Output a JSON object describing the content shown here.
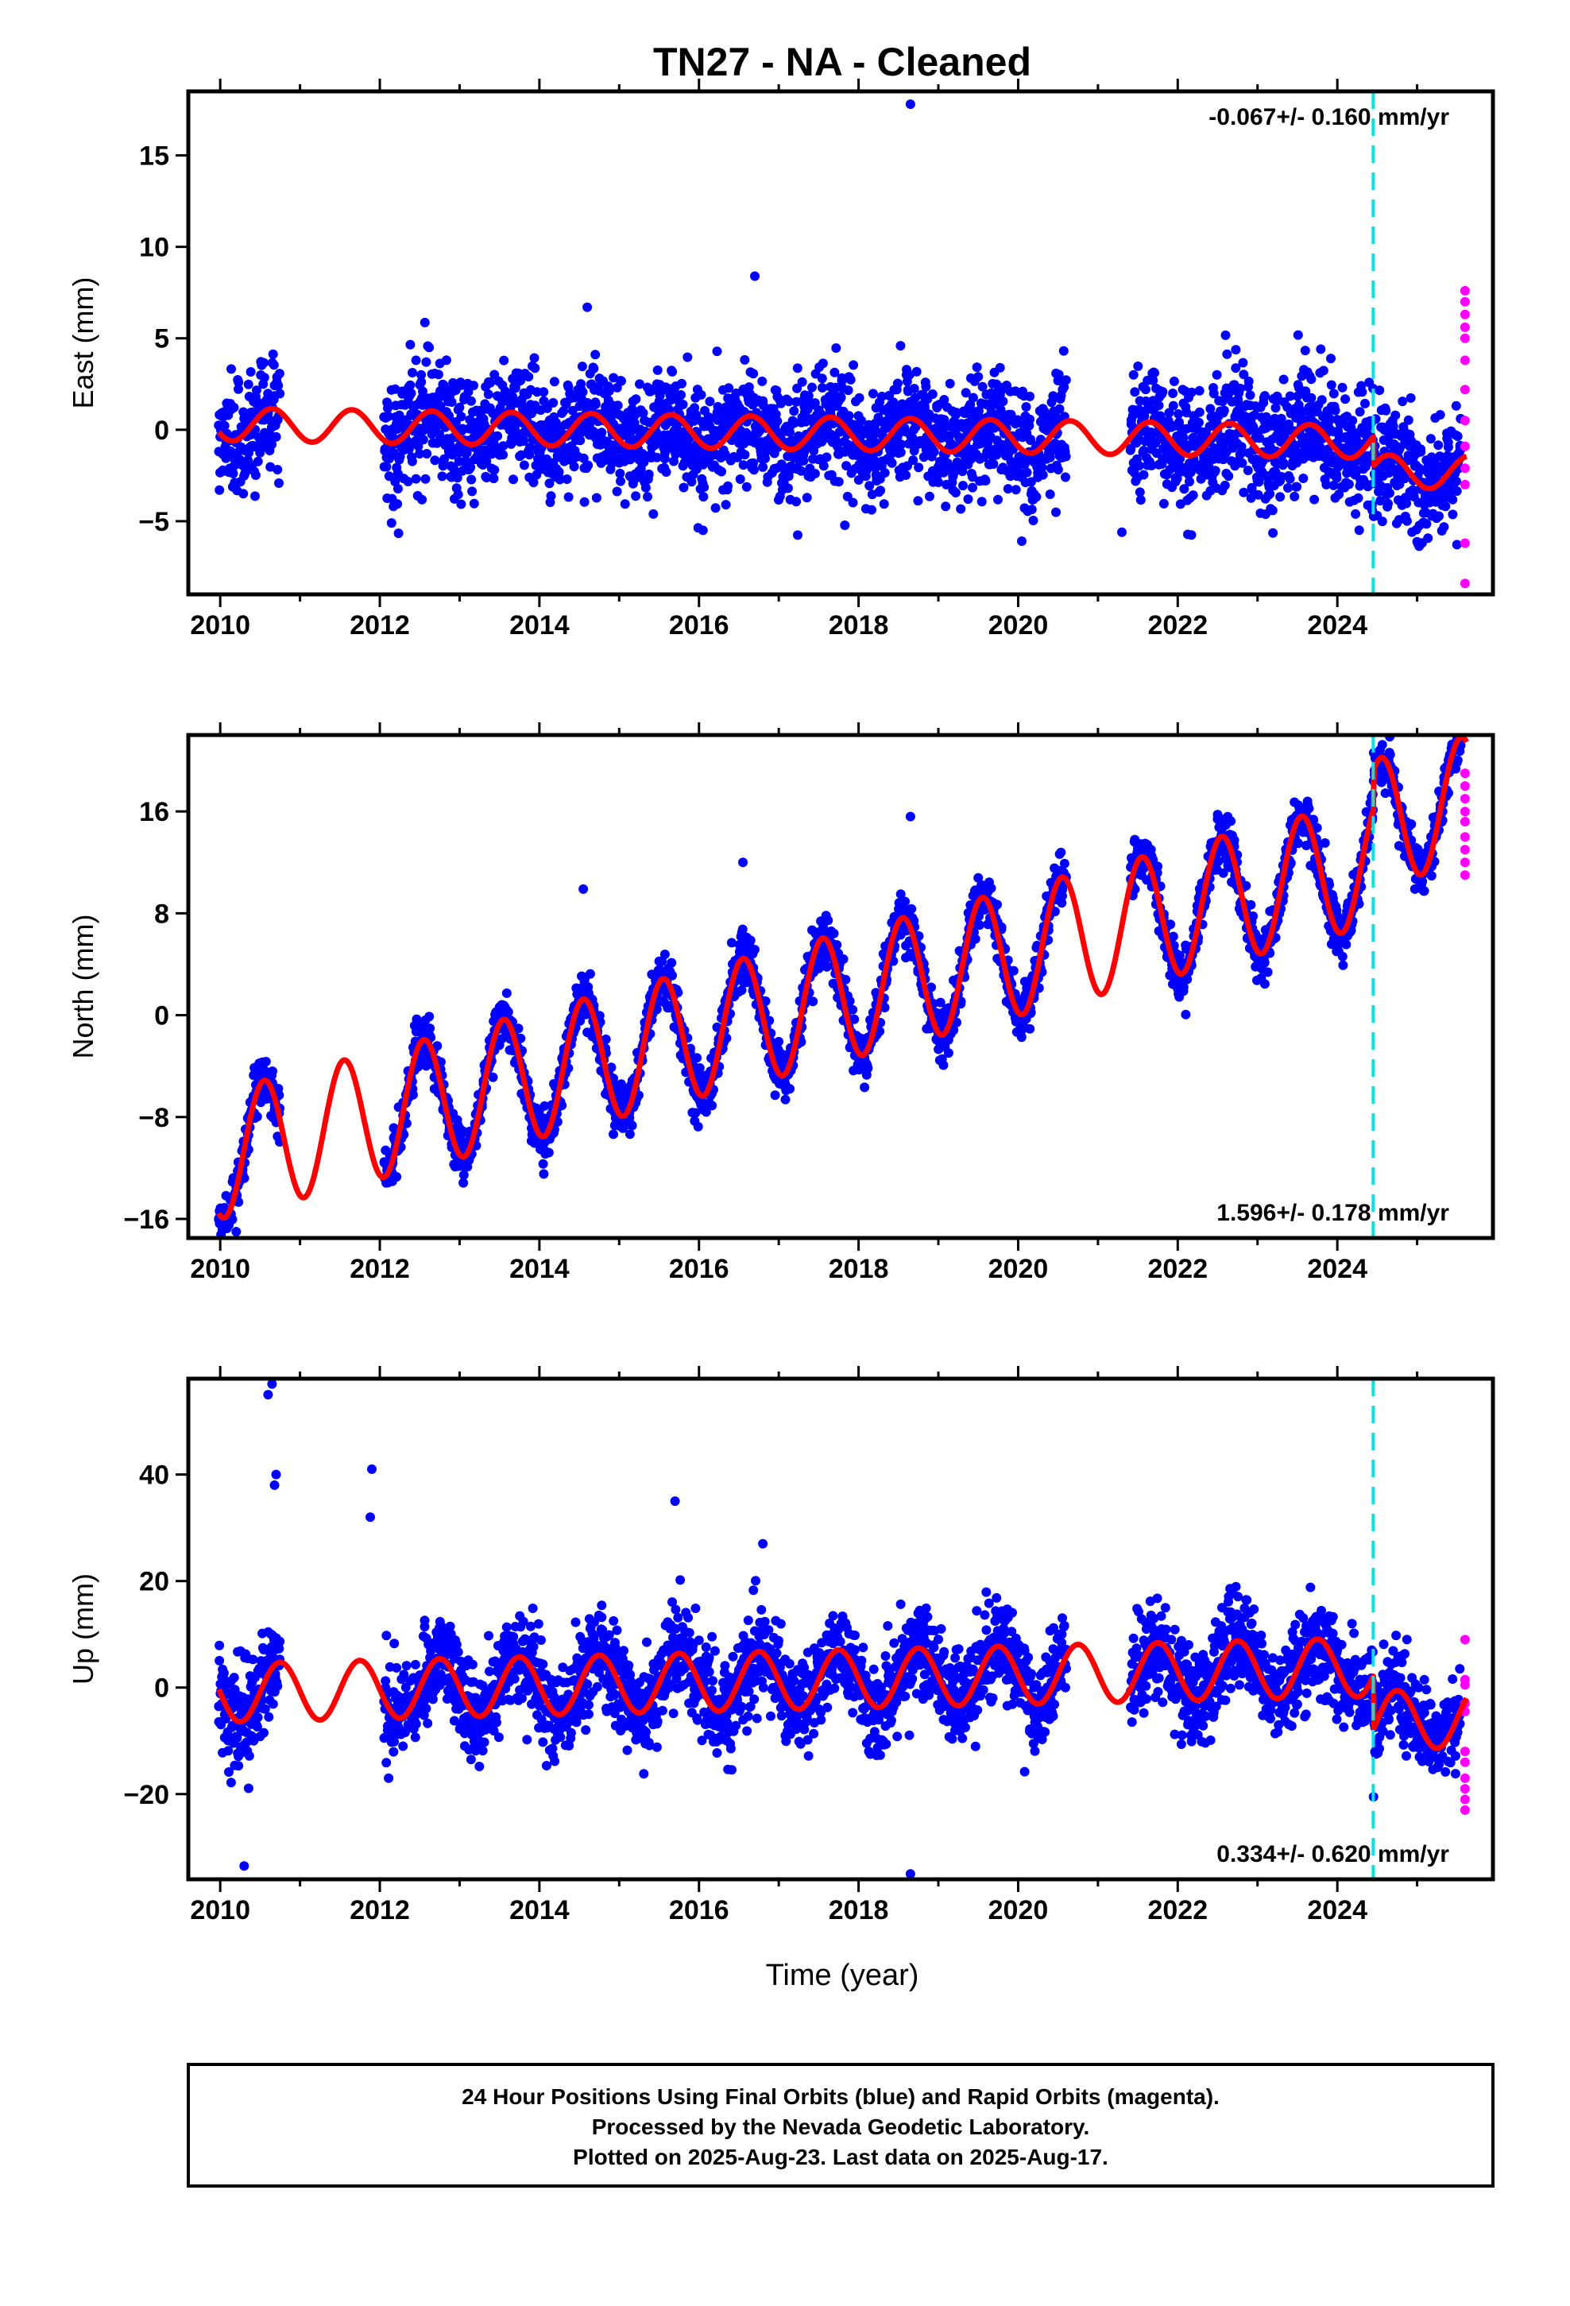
{
  "title": "TN27  - NA - Cleaned",
  "xlabel": "Time (year)",
  "footer": {
    "line1": "24 Hour Positions Using Final Orbits (blue) and Rapid Orbits (magenta).",
    "line2": "Processed by the Nevada Geodetic Laboratory.",
    "line3": "Plotted on 2025-Aug-23. Last data on 2025-Aug-17."
  },
  "colors": {
    "final_orbits": "#0000ff",
    "rapid_orbits": "#ff00ff",
    "model_fit": "#ff0000",
    "equipment_change": "#00e5e5"
  },
  "chart_data": [
    {
      "type": "scatter",
      "component": "east",
      "ylabel": "East (mm)",
      "rate_text": "-0.067+/- 0.160 mm/yr",
      "rate_position": "top-right",
      "xlim": [
        2009.6,
        2025.95
      ],
      "ylim": [
        -9,
        18.5
      ],
      "x_ticks": [
        2010,
        2012,
        2014,
        2016,
        2018,
        2020,
        2022,
        2024
      ],
      "y_ticks": [
        -5,
        0,
        5,
        10,
        15
      ],
      "vertical_marker_year": 2024.45,
      "data_gap": [
        2020.6,
        2021.4
      ],
      "model": {
        "offset": 0.3,
        "trend": -0.067,
        "amplitude": 0.9,
        "phase_peak": 0.65,
        "step_year": 2024.45,
        "step": -1.6
      },
      "scatter_sigma": 1.6,
      "outliers": [
        [
          2018.65,
          17.8
        ],
        [
          2016.7,
          8.4
        ],
        [
          2021.3,
          -5.6
        ],
        [
          2016.05,
          -5.5
        ],
        [
          2014.6,
          6.7
        ]
      ],
      "rapid_values": [
        7.6,
        7.0,
        6.3,
        5.6,
        5.0,
        3.8,
        2.2,
        0.5,
        -0.9,
        -2.1,
        -3.0,
        -6.2,
        -8.4
      ]
    },
    {
      "type": "scatter",
      "component": "north",
      "ylabel": "North (mm)",
      "rate_text": "1.596+/- 0.178 mm/yr",
      "rate_position": "bottom-right",
      "xlim": [
        2009.6,
        2025.95
      ],
      "ylim": [
        -17.5,
        22
      ],
      "x_ticks": [
        2010,
        2012,
        2014,
        2016,
        2018,
        2020,
        2022,
        2024
      ],
      "y_ticks": [
        -16,
        -8,
        0,
        8,
        16
      ],
      "vertical_marker_year": 2024.45,
      "data_gap": [
        2020.6,
        2021.4
      ],
      "model": {
        "offset": -11.0,
        "trend": 1.596,
        "amplitude": 5.0,
        "phase_peak": 0.55,
        "step_year": 2024.45,
        "step": 3.0
      },
      "scatter_sigma": 1.0,
      "outliers": [
        [
          2014.55,
          9.9
        ],
        [
          2016.55,
          12.0
        ],
        [
          2018.65,
          15.6
        ],
        [
          2010.2,
          -17.0
        ]
      ],
      "rapid_values": [
        19.0,
        18.0,
        17.0,
        16.0,
        15.2,
        14.0,
        13.0,
        12.0,
        11.0
      ]
    },
    {
      "type": "scatter",
      "component": "up",
      "ylabel": "Up (mm)",
      "rate_text": "0.334+/- 0.620 mm/yr",
      "rate_position": "bottom-right",
      "xlim": [
        2009.6,
        2025.95
      ],
      "ylim": [
        -36,
        58
      ],
      "x_ticks": [
        2010,
        2012,
        2014,
        2016,
        2018,
        2020,
        2022,
        2024
      ],
      "y_ticks": [
        -20,
        0,
        20,
        40
      ],
      "vertical_marker_year": 2024.45,
      "data_gap": [
        2020.6,
        2021.4
      ],
      "model": {
        "offset": -1.0,
        "trend": 0.334,
        "amplitude": 5.5,
        "phase_peak": 0.75,
        "step_year": 2024.45,
        "step": -10.0
      },
      "scatter_sigma": 4.5,
      "outliers": [
        [
          2010.65,
          57.0
        ],
        [
          2010.6,
          55.0
        ],
        [
          2010.7,
          40.0
        ],
        [
          2010.68,
          38.0
        ],
        [
          2011.9,
          41.0
        ],
        [
          2011.88,
          32.0
        ],
        [
          2015.7,
          35.0
        ],
        [
          2018.65,
          -35.0
        ],
        [
          2010.3,
          -33.5
        ],
        [
          2016.8,
          27.0
        ]
      ],
      "rapid_values": [
        9.0,
        1.5,
        0.5,
        -3.0,
        -4.5,
        -12.0,
        -14.0,
        -17.0,
        -19.0,
        -21.0,
        -23.0
      ]
    }
  ]
}
